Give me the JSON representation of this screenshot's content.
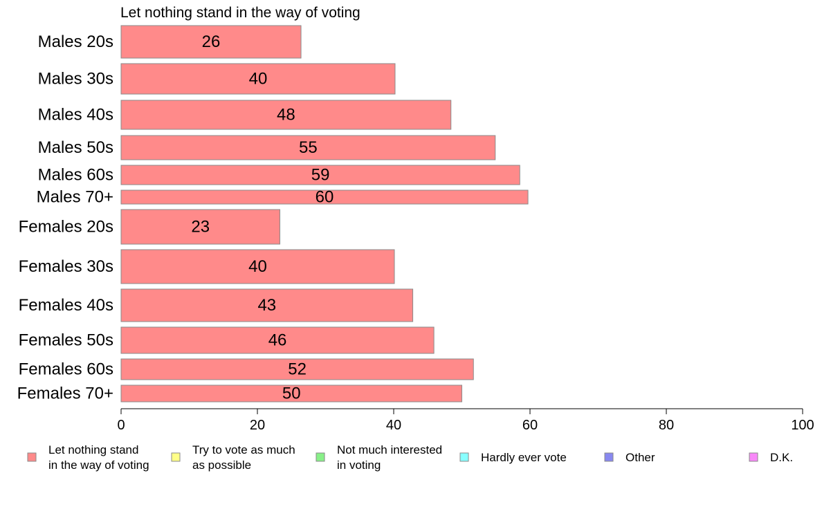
{
  "chart_data": {
    "type": "bar",
    "orientation": "horizontal",
    "title": "Let nothing stand in the way of voting",
    "categories": [
      "Males 20s",
      "Males 30s",
      "Males 40s",
      "Males 50s",
      "Males 60s",
      "Males 70+",
      "Females 20s",
      "Females 30s",
      "Females 40s",
      "Females 50s",
      "Females 60s",
      "Females 70+"
    ],
    "values": [
      26.4,
      40.2,
      48.4,
      54.9,
      58.5,
      59.7,
      23.3,
      40.1,
      42.8,
      45.9,
      51.7,
      50.0
    ],
    "value_labels": [
      "26",
      "40",
      "48",
      "55",
      "59",
      "60",
      "23",
      "40",
      "43",
      "46",
      "52",
      "50"
    ],
    "xlim": [
      0,
      100
    ],
    "xticks": [
      "0",
      "20",
      "40",
      "60",
      "80",
      "100"
    ],
    "xlabel": "",
    "ylabel": "",
    "grid": false,
    "bar_color": "#ff8a8a",
    "legend_placement": "bottom",
    "legend": [
      {
        "label_lines": [
          "Let nothing stand",
          "in the way of voting"
        ],
        "color": "#ff8a8a"
      },
      {
        "label_lines": [
          "Try to vote as much",
          "as possible"
        ],
        "color": "#ffff88"
      },
      {
        "label_lines": [
          "Not much interested",
          "in voting"
        ],
        "color": "#88f088"
      },
      {
        "label_lines": [
          "Hardly ever vote"
        ],
        "color": "#88ffff"
      },
      {
        "label_lines": [
          "Other"
        ],
        "color": "#8888f0"
      },
      {
        "label_lines": [
          "D.K."
        ],
        "color": "#f888f8"
      }
    ]
  }
}
